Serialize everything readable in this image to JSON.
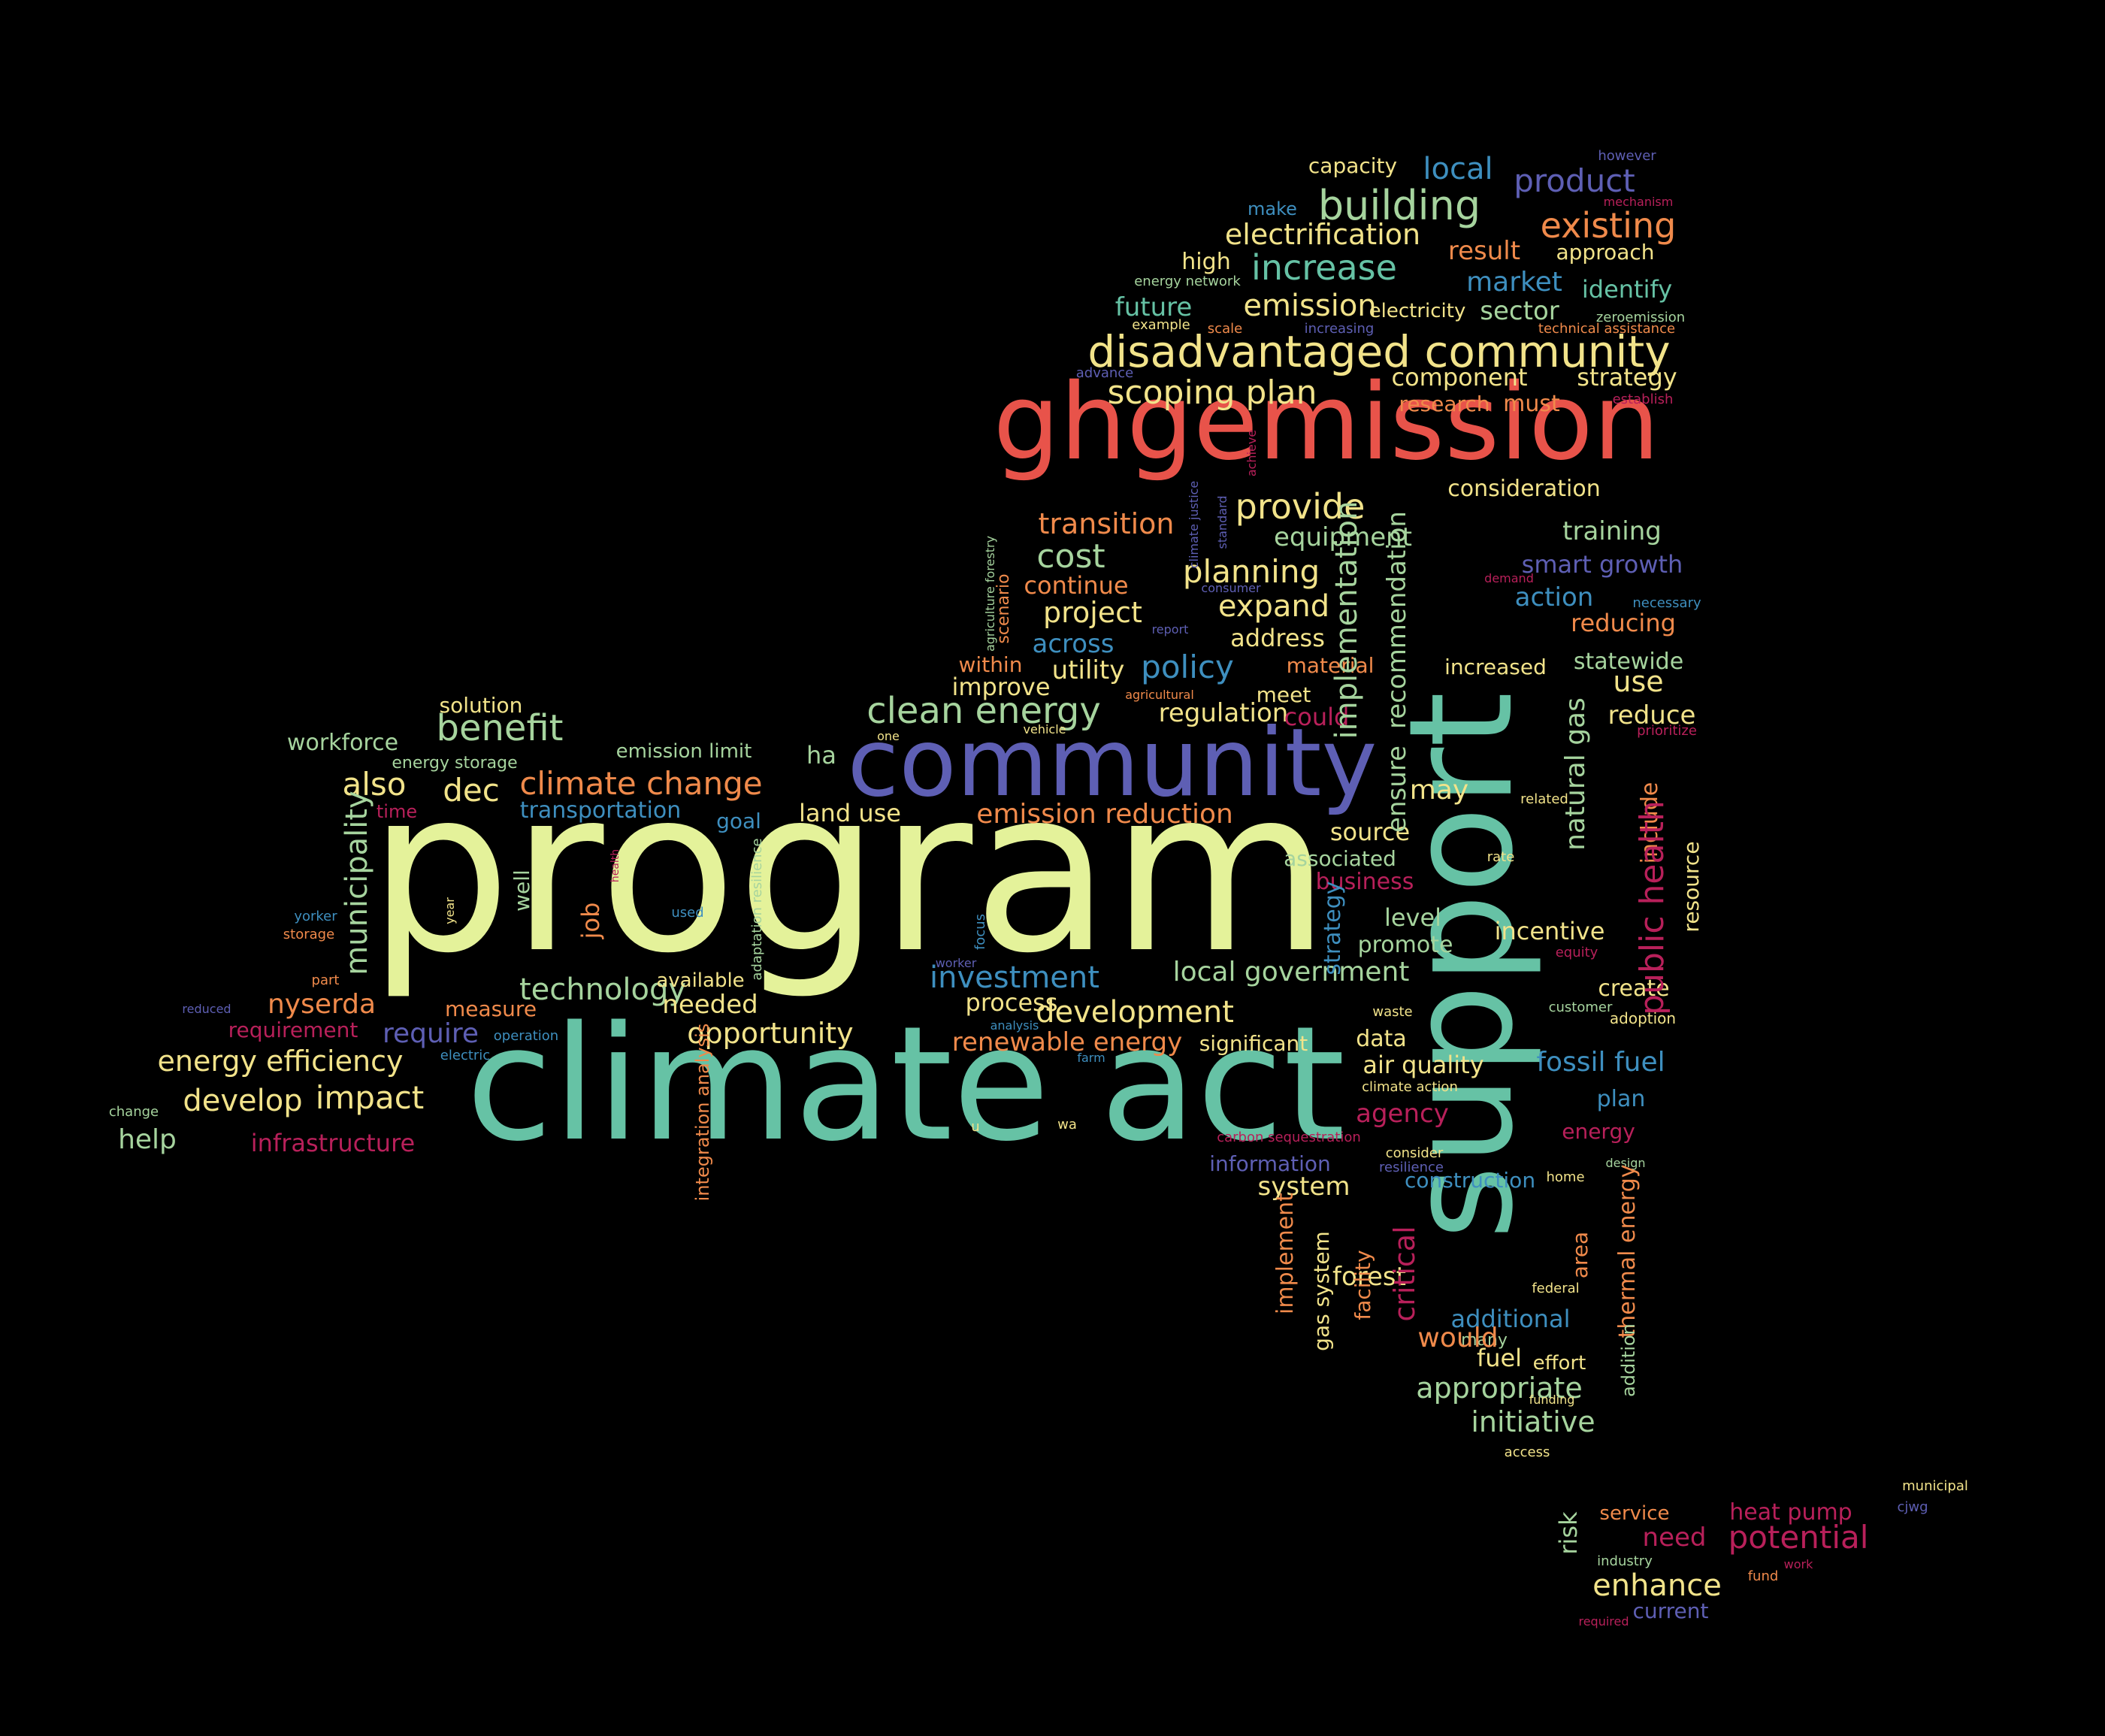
{
  "colors": {
    "background": "#000000",
    "red": "#e8534a",
    "orange": "#f08a4b",
    "yellow": "#f2e38a",
    "lightgreen": "#e4f29a",
    "green": "#a6d49e",
    "teal": "#66c2a5",
    "blue": "#3e8fbf",
    "purple": "#5e5fb4",
    "magenta": "#b8205a",
    "pale": "#dfe6a8"
  },
  "words": [
    {
      "text": "program",
      "color": "lightgreen"
    },
    {
      "text": "climate act",
      "color": "teal"
    },
    {
      "text": "support",
      "color": "teal"
    },
    {
      "text": "ghgemission",
      "color": "red"
    },
    {
      "text": "community",
      "color": "purple"
    },
    {
      "text": "disadvantaged community",
      "color": "yellow"
    },
    {
      "text": "building",
      "color": "green"
    },
    {
      "text": "existing",
      "color": "orange"
    },
    {
      "text": "increase",
      "color": "teal"
    },
    {
      "text": "electrification",
      "color": "yellow"
    },
    {
      "text": "emission",
      "color": "yellow"
    },
    {
      "text": "product",
      "color": "purple"
    },
    {
      "text": "local",
      "color": "blue"
    },
    {
      "text": "capacity",
      "color": "yellow"
    },
    {
      "text": "however",
      "color": "purple"
    },
    {
      "text": "mechanism",
      "color": "magenta"
    },
    {
      "text": "make",
      "color": "blue"
    },
    {
      "text": "result",
      "color": "orange"
    },
    {
      "text": "approach",
      "color": "yellow"
    },
    {
      "text": "high",
      "color": "yellow"
    },
    {
      "text": "energy network",
      "color": "green"
    },
    {
      "text": "market",
      "color": "blue"
    },
    {
      "text": "identify",
      "color": "teal"
    },
    {
      "text": "future",
      "color": "teal"
    },
    {
      "text": "electricity",
      "color": "yellow"
    },
    {
      "text": "sector",
      "color": "green"
    },
    {
      "text": "zeroemission",
      "color": "green"
    },
    {
      "text": "example",
      "color": "yellow"
    },
    {
      "text": "scale",
      "color": "orange"
    },
    {
      "text": "increasing",
      "color": "purple"
    },
    {
      "text": "technical assistance",
      "color": "orange"
    },
    {
      "text": "advance",
      "color": "purple"
    },
    {
      "text": "component",
      "color": "yellow"
    },
    {
      "text": "strategy",
      "color": "yellow"
    },
    {
      "text": "scoping plan",
      "color": "yellow"
    },
    {
      "text": "research",
      "color": "orange"
    },
    {
      "text": "must",
      "color": "orange"
    },
    {
      "text": "establish",
      "color": "magenta"
    },
    {
      "text": "consideration",
      "color": "yellow"
    },
    {
      "text": "provide",
      "color": "yellow"
    },
    {
      "text": "transition",
      "color": "orange"
    },
    {
      "text": "equipment",
      "color": "green"
    },
    {
      "text": "training",
      "color": "green"
    },
    {
      "text": "cost",
      "color": "green"
    },
    {
      "text": "smart growth",
      "color": "purple"
    },
    {
      "text": "planning",
      "color": "yellow"
    },
    {
      "text": "continue",
      "color": "orange"
    },
    {
      "text": "action",
      "color": "blue"
    },
    {
      "text": "project",
      "color": "yellow"
    },
    {
      "text": "expand",
      "color": "yellow"
    },
    {
      "text": "address",
      "color": "yellow"
    },
    {
      "text": "reducing",
      "color": "orange"
    },
    {
      "text": "across",
      "color": "blue"
    },
    {
      "text": "utility",
      "color": "yellow"
    },
    {
      "text": "policy",
      "color": "blue"
    },
    {
      "text": "material",
      "color": "orange"
    },
    {
      "text": "increased",
      "color": "yellow"
    },
    {
      "text": "statewide",
      "color": "green"
    },
    {
      "text": "within",
      "color": "orange"
    },
    {
      "text": "improve",
      "color": "yellow"
    },
    {
      "text": "meet",
      "color": "yellow"
    },
    {
      "text": "use",
      "color": "yellow"
    },
    {
      "text": "clean energy",
      "color": "green"
    },
    {
      "text": "regulation",
      "color": "yellow"
    },
    {
      "text": "could",
      "color": "magenta"
    },
    {
      "text": "reduce",
      "color": "yellow"
    },
    {
      "text": "solution",
      "color": "yellow"
    },
    {
      "text": "benefit",
      "color": "green"
    },
    {
      "text": "workforce",
      "color": "green"
    },
    {
      "text": "emission limit",
      "color": "green"
    },
    {
      "text": "energy storage",
      "color": "green"
    },
    {
      "text": "ha",
      "color": "green"
    },
    {
      "text": "also",
      "color": "yellow"
    },
    {
      "text": "dec",
      "color": "yellow"
    },
    {
      "text": "climate change",
      "color": "orange"
    },
    {
      "text": "time",
      "color": "magenta"
    },
    {
      "text": "transportation",
      "color": "blue"
    },
    {
      "text": "goal",
      "color": "blue"
    },
    {
      "text": "land use",
      "color": "yellow"
    },
    {
      "text": "emission reduction",
      "color": "orange"
    },
    {
      "text": "may",
      "color": "yellow"
    },
    {
      "text": "source",
      "color": "yellow"
    },
    {
      "text": "associated",
      "color": "green"
    },
    {
      "text": "business",
      "color": "magenta"
    },
    {
      "text": "level",
      "color": "green"
    },
    {
      "text": "incentive",
      "color": "yellow"
    },
    {
      "text": "promote",
      "color": "green"
    },
    {
      "text": "local government",
      "color": "green"
    },
    {
      "text": "create",
      "color": "yellow"
    },
    {
      "text": "investment",
      "color": "blue"
    },
    {
      "text": "technology",
      "color": "green"
    },
    {
      "text": "available",
      "color": "yellow"
    },
    {
      "text": "nyserda",
      "color": "orange"
    },
    {
      "text": "measure",
      "color": "orange"
    },
    {
      "text": "needed",
      "color": "yellow"
    },
    {
      "text": "process",
      "color": "yellow"
    },
    {
      "text": "development",
      "color": "yellow"
    },
    {
      "text": "requirement",
      "color": "magenta"
    },
    {
      "text": "require",
      "color": "purple"
    },
    {
      "text": "opportunity",
      "color": "yellow"
    },
    {
      "text": "renewable energy",
      "color": "orange"
    },
    {
      "text": "significant",
      "color": "yellow"
    },
    {
      "text": "data",
      "color": "yellow"
    },
    {
      "text": "adoption",
      "color": "yellow"
    },
    {
      "text": "energy efficiency",
      "color": "yellow"
    },
    {
      "text": "air quality",
      "color": "yellow"
    },
    {
      "text": "fossil fuel",
      "color": "blue"
    },
    {
      "text": "develop",
      "color": "yellow"
    },
    {
      "text": "impact",
      "color": "yellow"
    },
    {
      "text": "agency",
      "color": "magenta"
    },
    {
      "text": "plan",
      "color": "blue"
    },
    {
      "text": "change",
      "color": "green"
    },
    {
      "text": "help",
      "color": "green"
    },
    {
      "text": "infrastructure",
      "color": "magenta"
    },
    {
      "text": "energy",
      "color": "magenta"
    },
    {
      "text": "information",
      "color": "purple"
    },
    {
      "text": "system",
      "color": "yellow"
    },
    {
      "text": "construction",
      "color": "blue"
    },
    {
      "text": "design",
      "color": "green"
    },
    {
      "text": "additional",
      "color": "blue"
    },
    {
      "text": "forest",
      "color": "yellow"
    },
    {
      "text": "many",
      "color": "green"
    },
    {
      "text": "would",
      "color": "orange"
    },
    {
      "text": "fuel",
      "color": "yellow"
    },
    {
      "text": "effort",
      "color": "yellow"
    },
    {
      "text": "appropriate",
      "color": "green"
    },
    {
      "text": "funding",
      "color": "yellow"
    },
    {
      "text": "initiative",
      "color": "green"
    },
    {
      "text": "access",
      "color": "yellow"
    },
    {
      "text": "service",
      "color": "orange"
    },
    {
      "text": "heat pump",
      "color": "magenta"
    },
    {
      "text": "need",
      "color": "magenta"
    },
    {
      "text": "potential",
      "color": "magenta"
    },
    {
      "text": "enhance",
      "color": "yellow"
    },
    {
      "text": "fund",
      "color": "orange"
    },
    {
      "text": "current",
      "color": "purple"
    },
    {
      "text": "required",
      "color": "magenta"
    },
    {
      "text": "municipal",
      "color": "yellow"
    },
    {
      "text": "cjwg",
      "color": "purple"
    },
    {
      "text": "work",
      "color": "magenta"
    },
    {
      "text": "industry",
      "color": "green"
    },
    {
      "text": "implementation",
      "color": "green"
    },
    {
      "text": "recommendation",
      "color": "green"
    },
    {
      "text": "ensure",
      "color": "green"
    },
    {
      "text": "natural gas",
      "color": "green"
    },
    {
      "text": "include",
      "color": "orange"
    },
    {
      "text": "public health",
      "color": "magenta"
    },
    {
      "text": "resource",
      "color": "yellow"
    },
    {
      "text": "municipality",
      "color": "green"
    },
    {
      "text": "well",
      "color": "green"
    },
    {
      "text": "job",
      "color": "orange"
    },
    {
      "text": "strategy",
      "color": "blue"
    },
    {
      "text": "critical",
      "color": "magenta"
    },
    {
      "text": "implement",
      "color": "orange"
    },
    {
      "text": "gas system",
      "color": "yellow"
    },
    {
      "text": "facility",
      "color": "orange"
    },
    {
      "text": "area",
      "color": "orange"
    },
    {
      "text": "thermal energy",
      "color": "orange"
    },
    {
      "text": "addition",
      "color": "green"
    },
    {
      "text": "risk",
      "color": "green"
    },
    {
      "text": "integration analysis",
      "color": "orange"
    },
    {
      "text": "adaptation resilience",
      "color": "green"
    },
    {
      "text": "focus",
      "color": "blue"
    },
    {
      "text": "scenario",
      "color": "orange"
    },
    {
      "text": "agriculture forestry",
      "color": "green"
    },
    {
      "text": "climate justice",
      "color": "purple"
    },
    {
      "text": "standard",
      "color": "purple"
    },
    {
      "text": "achieve",
      "color": "magenta"
    },
    {
      "text": "year",
      "color": "yellow"
    },
    {
      "text": "health",
      "color": "magenta"
    },
    {
      "text": "used",
      "color": "blue"
    },
    {
      "text": "yorker",
      "color": "blue"
    },
    {
      "text": "storage",
      "color": "orange"
    },
    {
      "text": "part",
      "color": "orange"
    },
    {
      "text": "reduced",
      "color": "purple"
    },
    {
      "text": "operation",
      "color": "blue"
    },
    {
      "text": "electric",
      "color": "blue"
    },
    {
      "text": "analysis",
      "color": "blue"
    },
    {
      "text": "farm",
      "color": "blue"
    },
    {
      "text": "worker",
      "color": "purple"
    },
    {
      "text": "one",
      "color": "yellow"
    },
    {
      "text": "vehicle",
      "color": "yellow"
    },
    {
      "text": "agricultural",
      "color": "orange"
    },
    {
      "text": "report",
      "color": "purple"
    },
    {
      "text": "consumer",
      "color": "purple"
    },
    {
      "text": "demand",
      "color": "magenta"
    },
    {
      "text": "necessary",
      "color": "blue"
    },
    {
      "text": "prioritize",
      "color": "magenta"
    },
    {
      "text": "related",
      "color": "yellow"
    },
    {
      "text": "rate",
      "color": "yellow"
    },
    {
      "text": "equity",
      "color": "magenta"
    },
    {
      "text": "waste",
      "color": "yellow"
    },
    {
      "text": "customer",
      "color": "green"
    },
    {
      "text": "climate action",
      "color": "yellow"
    },
    {
      "text": "wa",
      "color": "yellow"
    },
    {
      "text": "u",
      "color": "yellow"
    },
    {
      "text": "carbon sequestration",
      "color": "magenta"
    },
    {
      "text": "consider",
      "color": "yellow"
    },
    {
      "text": "resilience",
      "color": "purple"
    },
    {
      "text": "home",
      "color": "yellow"
    },
    {
      "text": "federal",
      "color": "yellow"
    }
  ]
}
